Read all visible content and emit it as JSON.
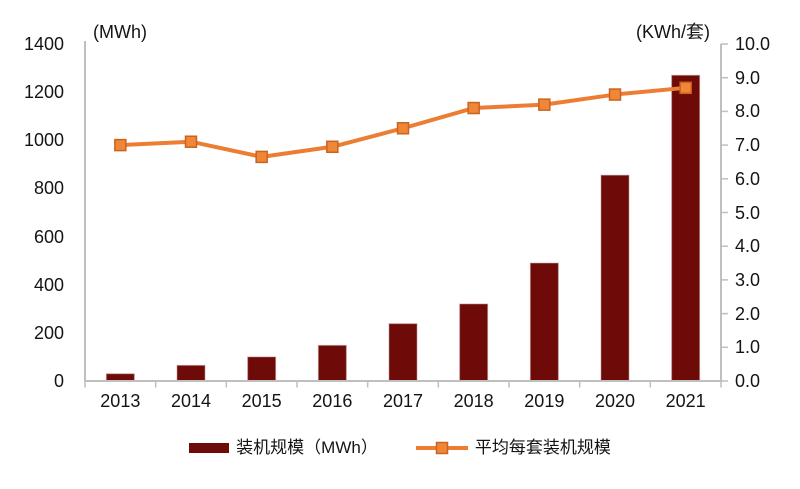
{
  "chart_data": {
    "type": "bar+line",
    "categories": [
      "2013",
      "2014",
      "2015",
      "2016",
      "2017",
      "2018",
      "2019",
      "2020",
      "2021"
    ],
    "series": [
      {
        "name": "装机规模（MWh）",
        "type": "bar",
        "axis": "left",
        "unit": "MWh",
        "color": "#6E0A08",
        "border_color": "#BC9494",
        "values": [
          30,
          65,
          100,
          148,
          238,
          320,
          490,
          855,
          1270
        ]
      },
      {
        "name": "平均每套装机规模",
        "type": "line",
        "axis": "right",
        "unit": "KWh/套",
        "color": "#EC7D33",
        "marker": "square",
        "marker_fill": "#EF8638",
        "marker_stroke": "#C9641F",
        "values": [
          7.0,
          7.1,
          6.65,
          6.95,
          7.5,
          8.1,
          8.2,
          8.5,
          8.7
        ]
      }
    ],
    "left_axis": {
      "title": "(MWh)",
      "min": 0,
      "max": 1400,
      "step": 200,
      "tick_labels": [
        "0",
        "200",
        "400",
        "600",
        "800",
        "1000",
        "1200",
        "1400"
      ]
    },
    "right_axis": {
      "title": "(KWh/套)",
      "min": 0,
      "max": 10,
      "step": 1,
      "tick_labels": [
        "0.0",
        "1.0",
        "2.0",
        "3.0",
        "4.0",
        "5.0",
        "6.0",
        "7.0",
        "8.0",
        "9.0",
        "10.0"
      ]
    },
    "legend": {
      "position": "bottom",
      "items": [
        "装机规模（MWh）",
        "平均每套装机规模"
      ]
    },
    "grid": false
  },
  "colors": {
    "background": "#FFFFFF",
    "axis": "#BFBFBF",
    "text": "#141414",
    "bar": "#6E0A08",
    "line": "#EC7D33"
  }
}
